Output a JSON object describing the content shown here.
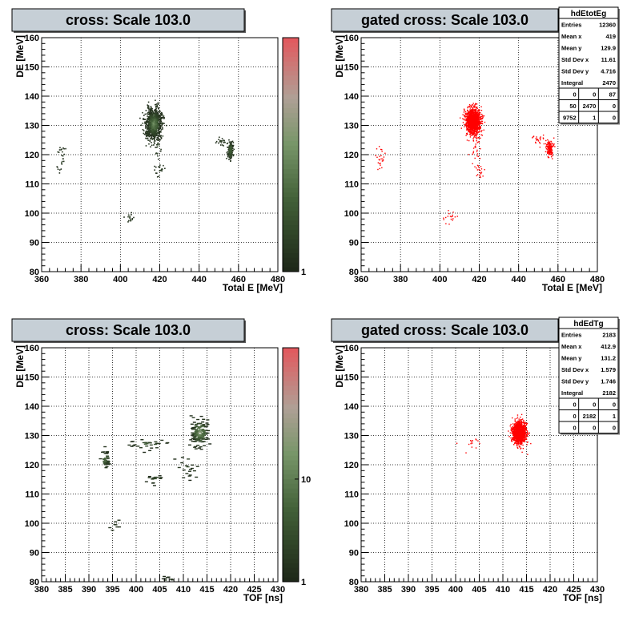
{
  "chart_data": [
    {
      "type": "heatmap",
      "title": "cross: Scale 103.0",
      "xlabel": "Total E [MeV]",
      "ylabel": "DE [MeV]",
      "xlim": [
        360,
        480
      ],
      "ylim": [
        80,
        160
      ],
      "xticks": [
        360,
        380,
        400,
        420,
        440,
        460,
        480
      ],
      "yticks": [
        80,
        90,
        100,
        110,
        120,
        130,
        140,
        150,
        160
      ],
      "grid": true,
      "palette": "green-to-red",
      "colorbar": {
        "min": 1,
        "labels": [
          "1"
        ]
      },
      "clusters": [
        {
          "x": 417,
          "y": 130.5,
          "sx": 2.0,
          "sy": 2.6,
          "count": 900,
          "level": 0.45
        },
        {
          "x": 456,
          "y": 121.5,
          "sx": 0.8,
          "sy": 1.6,
          "count": 140,
          "level": 0.3
        },
        {
          "x": 451,
          "y": 124.5,
          "sx": 2.0,
          "sy": 0.8,
          "count": 25,
          "level": 0.05
        },
        {
          "x": 370,
          "y": 118.5,
          "sx": 1.2,
          "sy": 2.5,
          "count": 25,
          "level": 0.05
        },
        {
          "x": 420,
          "y": 114.5,
          "sx": 1.5,
          "sy": 1.2,
          "count": 20,
          "level": 0.05
        },
        {
          "x": 405,
          "y": 98.5,
          "sx": 1.5,
          "sy": 1.0,
          "count": 18,
          "level": 0.05
        },
        {
          "x": 419,
          "y": 122.5,
          "sx": 1.0,
          "sy": 3.0,
          "count": 18,
          "level": 0.05
        }
      ]
    },
    {
      "type": "scatter",
      "title": "gated cross: Scale 103.0",
      "xlabel": "Total E [MeV]",
      "ylabel": "DE [MeV]",
      "xlim": [
        360,
        480
      ],
      "ylim": [
        80,
        160
      ],
      "xticks": [
        360,
        380,
        400,
        420,
        440,
        460,
        480
      ],
      "yticks": [
        80,
        90,
        100,
        110,
        120,
        130,
        140,
        150,
        160
      ],
      "grid": true,
      "marker_color": "#ff0000",
      "clusters": [
        {
          "x": 417,
          "y": 131.5,
          "sx": 2.0,
          "sy": 2.2,
          "count": 1200
        },
        {
          "x": 456,
          "y": 122,
          "sx": 0.8,
          "sy": 1.4,
          "count": 140
        },
        {
          "x": 451,
          "y": 125,
          "sx": 2.0,
          "sy": 0.8,
          "count": 25
        },
        {
          "x": 370,
          "y": 118.5,
          "sx": 1.2,
          "sy": 2.5,
          "count": 25
        },
        {
          "x": 420,
          "y": 114.5,
          "sx": 1.5,
          "sy": 1.2,
          "count": 20
        },
        {
          "x": 405,
          "y": 98.5,
          "sx": 1.5,
          "sy": 1.0,
          "count": 18
        },
        {
          "x": 418,
          "y": 122,
          "sx": 1.5,
          "sy": 3.0,
          "count": 30
        }
      ],
      "stats": {
        "name": "hdEtotEg",
        "rows": [
          [
            "Entries",
            "12360"
          ],
          [
            "Mean x",
            "419"
          ],
          [
            "Mean y",
            "129.9"
          ],
          [
            "Std Dev x",
            "11.61"
          ],
          [
            "Std Dev y",
            "4.716"
          ],
          [
            "Integral",
            "2470"
          ]
        ],
        "grid": [
          [
            "0",
            "0",
            "87"
          ],
          [
            "50",
            "2470",
            "0"
          ],
          [
            "9752",
            "1",
            "0"
          ]
        ]
      }
    },
    {
      "type": "heatmap",
      "title": "cross: Scale 103.0",
      "xlabel": "TOF [ns]",
      "ylabel": "DE [MeV]",
      "xlim": [
        380,
        430
      ],
      "ylim": [
        80,
        160
      ],
      "xticks": [
        380,
        385,
        390,
        395,
        400,
        405,
        410,
        415,
        420,
        425,
        430
      ],
      "yticks": [
        80,
        90,
        100,
        110,
        120,
        130,
        140,
        150,
        160
      ],
      "grid": true,
      "palette": "green-to-red",
      "colorbar": {
        "min": 1,
        "labels": [
          "1",
          "10"
        ]
      },
      "clusters": [
        {
          "x": 413.5,
          "y": 131,
          "sx": 1.0,
          "sy": 2.5,
          "count": 140,
          "level": 0.55
        },
        {
          "x": 393.5,
          "y": 122,
          "sx": 0.5,
          "sy": 1.5,
          "count": 35,
          "level": 0.35
        },
        {
          "x": 402.5,
          "y": 127,
          "sx": 2.0,
          "sy": 1.0,
          "count": 30,
          "level": 0.2
        },
        {
          "x": 404,
          "y": 115,
          "sx": 0.7,
          "sy": 1.0,
          "count": 15,
          "level": 0.2
        },
        {
          "x": 411,
          "y": 119,
          "sx": 1.0,
          "sy": 2.5,
          "count": 20,
          "level": 0.1
        },
        {
          "x": 395.5,
          "y": 99,
          "sx": 0.5,
          "sy": 1.2,
          "count": 8,
          "level": 0.05
        },
        {
          "x": 406.5,
          "y": 81,
          "sx": 0.8,
          "sy": 0.5,
          "count": 8,
          "level": 0.05
        }
      ]
    },
    {
      "type": "scatter",
      "title": "gated cross: Scale 103.0",
      "xlabel": "TOF [ns]",
      "ylabel": "DE [MeV]",
      "xlim": [
        380,
        430
      ],
      "ylim": [
        80,
        160
      ],
      "xticks": [
        380,
        385,
        390,
        395,
        400,
        405,
        410,
        415,
        420,
        425,
        430
      ],
      "yticks": [
        80,
        90,
        100,
        110,
        120,
        130,
        140,
        150,
        160
      ],
      "grid": true,
      "marker_color": "#ff0000",
      "clusters": [
        {
          "x": 413.5,
          "y": 131,
          "sx": 0.7,
          "sy": 1.8,
          "count": 1300
        },
        {
          "x": 403.5,
          "y": 127.5,
          "sx": 1.5,
          "sy": 1.0,
          "count": 15
        }
      ],
      "stats": {
        "name": "hdEdTg",
        "rows": [
          [
            "Entries",
            "2183"
          ],
          [
            "Mean x",
            "412.9"
          ],
          [
            "Mean y",
            "131.2"
          ],
          [
            "Std Dev x",
            "1.579"
          ],
          [
            "Std Dev y",
            "1.746"
          ],
          [
            "Integral",
            "2182"
          ]
        ],
        "grid": [
          [
            "0",
            "0",
            "0"
          ],
          [
            "0",
            "2182",
            "1"
          ],
          [
            "0",
            "0",
            "0"
          ]
        ]
      }
    }
  ]
}
